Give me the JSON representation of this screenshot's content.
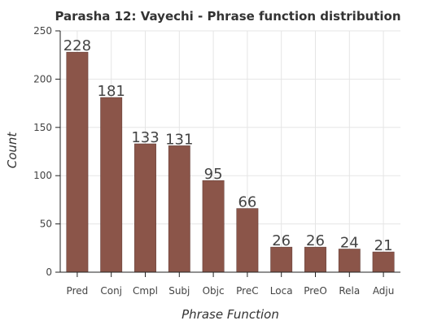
{
  "chart_data": {
    "type": "bar",
    "title": "Parasha 12: Vayechi - Phrase function distribution",
    "xlabel": "Phrase Function",
    "ylabel": "Count",
    "categories": [
      "Pred",
      "Conj",
      "Cmpl",
      "Subj",
      "Objc",
      "PreC",
      "Loca",
      "PreO",
      "Rela",
      "Adju"
    ],
    "values": [
      228,
      181,
      133,
      131,
      95,
      66,
      26,
      26,
      24,
      21
    ],
    "ylim": [
      0,
      250
    ],
    "yticks": [
      "0",
      "50",
      "100",
      "150",
      "200",
      "250"
    ],
    "grid": true,
    "bar_color": "#8b5549"
  }
}
